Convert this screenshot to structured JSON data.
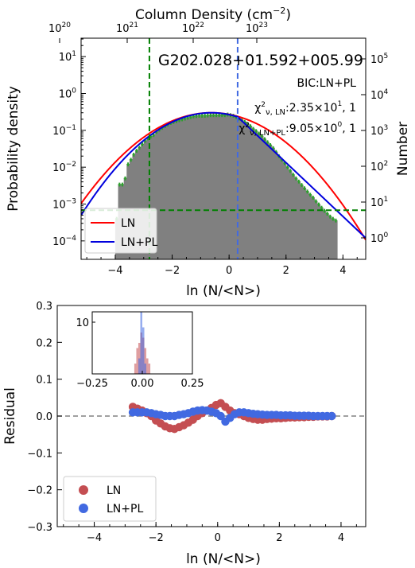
{
  "chart_data": [
    {
      "type": "bar",
      "panel": "top",
      "title": "G202.028+01.592+005.99",
      "annotations": [
        "BIC:LN+PL",
        "χ²ν, LN:2.35×10¹, 1",
        "χ²ν, LN+PL:9.05×10⁰, 1"
      ],
      "ann_bic": "BIC:LN+PL",
      "ann_ln_pre": "χ",
      "ann_ln_sub": "ν, LN",
      "ann_ln_post": ":2.35×10",
      "ann_ln_exp": "1",
      "ann_ln_tail": ", 1",
      "ann_pl_pre": "χ",
      "ann_pl_sub": "ν, LN+PL",
      "ann_pl_post": ":9.05×10",
      "ann_pl_exp": "0",
      "ann_pl_tail": ", 1",
      "xlabel": "ln (N/<N>)",
      "ylabel": "Probability density",
      "ylabel_right": "Number",
      "xlabel_top_pre": "Column Density (cm",
      "xlabel_top_exp": "−2",
      "xlabel_top_post": ")",
      "xlim": [
        -5.2,
        4.8
      ],
      "ylim_log10": [
        -4.5,
        1.5
      ],
      "yscale": "log",
      "x_ticks": [
        -4,
        -2,
        0,
        2,
        4
      ],
      "y_ticks_log10": [
        -4,
        -3,
        -2,
        -1,
        0,
        1
      ],
      "right_ticks_log10": [
        0,
        1,
        2,
        3,
        4,
        5
      ],
      "top_ticks_log10_density": [
        20,
        21,
        22,
        23
      ],
      "histogram": {
        "x": [
          -3.95,
          -3.85,
          -3.75,
          -3.65,
          -3.55,
          -3.45,
          -3.35,
          -3.25,
          -3.15,
          -3.05,
          -2.95,
          -2.85,
          -2.75,
          -2.65,
          -2.55,
          -2.45,
          -2.35,
          -2.25,
          -2.15,
          -2.05,
          -1.95,
          -1.85,
          -1.75,
          -1.65,
          -1.55,
          -1.45,
          -1.35,
          -1.25,
          -1.15,
          -1.05,
          -0.95,
          -0.85,
          -0.75,
          -0.65,
          -0.55,
          -0.45,
          -0.35,
          -0.25,
          -0.15,
          -0.05,
          0.05,
          0.15,
          0.25,
          0.35,
          0.45,
          0.55,
          0.65,
          0.75,
          0.85,
          0.95,
          1.05,
          1.15,
          1.25,
          1.35,
          1.45,
          1.55,
          1.65,
          1.75,
          1.85,
          1.95,
          2.05,
          2.15,
          2.25,
          2.35,
          2.45,
          2.55,
          2.65,
          2.75,
          2.85,
          2.95,
          3.05,
          3.15,
          3.25,
          3.35,
          3.45,
          3.55,
          3.65,
          3.75
        ],
        "density": [
          0.0004,
          0.0034,
          0.0034,
          0.005,
          0.012,
          0.016,
          0.022,
          0.028,
          0.034,
          0.042,
          0.052,
          0.061,
          0.068,
          0.075,
          0.091,
          0.105,
          0.118,
          0.131,
          0.145,
          0.16,
          0.17,
          0.18,
          0.19,
          0.2,
          0.21,
          0.22,
          0.23,
          0.24,
          0.245,
          0.25,
          0.25,
          0.25,
          0.255,
          0.26,
          0.26,
          0.26,
          0.26,
          0.26,
          0.26,
          0.27,
          0.26,
          0.25,
          0.23,
          0.21,
          0.19,
          0.17,
          0.15,
          0.13,
          0.11,
          0.096,
          0.082,
          0.07,
          0.058,
          0.048,
          0.04,
          0.033,
          0.026,
          0.02,
          0.016,
          0.013,
          0.01,
          0.008,
          0.0063,
          0.005,
          0.0041,
          0.0033,
          0.0027,
          0.0022,
          0.0018,
          0.0015,
          0.0012,
          0.00098,
          0.0008,
          0.00066,
          0.00055,
          0.00046,
          0.0004,
          0.00036
        ],
        "color": "#808080",
        "error_color": "#2ca02c"
      },
      "series": [
        {
          "name": "LN",
          "type": "lognormal",
          "color": "#ff0000",
          "mu": -0.62,
          "sigma": 1.36,
          "amp": 0.3
        },
        {
          "name": "LN+PL",
          "type": "lognormal+powerlaw",
          "color": "#0000dd",
          "mu": -0.62,
          "sigma": 1.28,
          "amp": 0.3,
          "x_break": 0.3,
          "slope": -0.73
        }
      ],
      "vlines": [
        {
          "x": -2.8,
          "color": "#008000",
          "style": "dashed"
        },
        {
          "x": 0.3,
          "color": "#4169e1",
          "style": "dashed"
        }
      ],
      "hlines": [
        {
          "y": 0.00068,
          "color": "#008000",
          "style": "dashed"
        }
      ],
      "legend_position": "lower left"
    },
    {
      "type": "scatter",
      "panel": "bottom",
      "xlabel": "ln (N/<N>)",
      "ylabel": "Residual",
      "xlim": [
        -5.2,
        4.8
      ],
      "ylim": [
        -0.3,
        0.3
      ],
      "x_ticks": [
        -4,
        -2,
        0,
        2,
        4
      ],
      "y_ticks": [
        -0.3,
        -0.2,
        -0.1,
        0.0,
        0.1,
        0.2,
        0.3
      ],
      "hline": {
        "y": 0.0,
        "color": "#808080",
        "style": "dashed"
      },
      "series": [
        {
          "name": "LN",
          "color": "#c44e52",
          "x": [
            -2.75,
            -2.6,
            -2.45,
            -2.3,
            -2.15,
            -2.0,
            -1.85,
            -1.7,
            -1.55,
            -1.4,
            -1.25,
            -1.1,
            -0.95,
            -0.8,
            -0.65,
            -0.5,
            -0.35,
            -0.2,
            -0.05,
            0.1,
            0.25,
            0.4,
            0.55,
            0.7,
            0.85,
            1.0,
            1.15,
            1.3,
            1.45,
            1.6,
            1.75,
            1.9,
            2.05,
            2.2,
            2.35,
            2.5,
            2.65,
            2.8,
            2.95,
            3.1,
            3.25,
            3.4,
            3.55,
            3.7
          ],
          "y": [
            0.025,
            0.02,
            0.015,
            0.008,
            0.0,
            -0.012,
            -0.02,
            -0.028,
            -0.033,
            -0.035,
            -0.03,
            -0.025,
            -0.018,
            -0.01,
            0.0,
            0.008,
            0.015,
            0.022,
            0.03,
            0.035,
            0.025,
            0.015,
            0.008,
            0.005,
            0.0,
            -0.005,
            -0.008,
            -0.01,
            -0.01,
            -0.008,
            -0.007,
            -0.006,
            -0.006,
            -0.005,
            -0.004,
            -0.004,
            -0.003,
            -0.003,
            -0.002,
            -0.002,
            -0.001,
            -0.001,
            -0.001,
            0.0
          ]
        },
        {
          "name": "LN+PL",
          "color": "#4169e1",
          "x": [
            -2.75,
            -2.6,
            -2.45,
            -2.3,
            -2.15,
            -2.0,
            -1.85,
            -1.7,
            -1.55,
            -1.4,
            -1.25,
            -1.1,
            -0.95,
            -0.8,
            -0.65,
            -0.5,
            -0.35,
            -0.2,
            -0.05,
            0.1,
            0.25,
            0.4,
            0.55,
            0.7,
            0.85,
            1.0,
            1.15,
            1.3,
            1.45,
            1.6,
            1.75,
            1.9,
            2.05,
            2.2,
            2.35,
            2.5,
            2.65,
            2.8,
            2.95,
            3.1,
            3.25,
            3.4,
            3.55,
            3.7
          ],
          "y": [
            0.01,
            0.01,
            0.01,
            0.01,
            0.008,
            0.005,
            0.003,
            0.0,
            0.0,
            0.0,
            0.003,
            0.005,
            0.008,
            0.012,
            0.015,
            0.016,
            0.015,
            0.012,
            0.008,
            0.0,
            -0.015,
            -0.005,
            0.005,
            0.01,
            0.01,
            0.008,
            0.006,
            0.005,
            0.004,
            0.003,
            0.003,
            0.003,
            0.002,
            0.002,
            0.002,
            0.001,
            0.001,
            0.001,
            0.001,
            0.0,
            0.0,
            0.0,
            0.0,
            0.0
          ]
        }
      ],
      "legend_position": "lower left",
      "inset": {
        "type": "histogram",
        "xlim": [
          -0.25,
          0.25
        ],
        "ylim": [
          0,
          12
        ],
        "x_ticks": [
          -0.25,
          0.0,
          0.25
        ],
        "y_ticks": [
          10
        ],
        "series": [
          {
            "name": "LN",
            "color": "#c44e52",
            "bins": [
              -0.035,
              -0.025,
              -0.015,
              -0.005,
              0.005,
              0.015,
              0.025,
              0.035
            ],
            "counts": [
              2,
              5,
              6,
              8,
              7,
              5,
              3,
              2
            ]
          },
          {
            "name": "LN+PL",
            "color": "#4169e1",
            "bins": [
              -0.015,
              -0.005,
              0.005,
              0.015
            ],
            "counts": [
              3,
              12,
              9,
              2
            ]
          }
        ]
      }
    }
  ]
}
